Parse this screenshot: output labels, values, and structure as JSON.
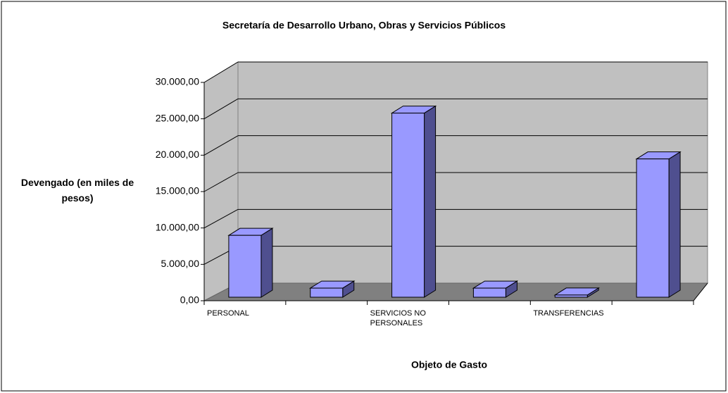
{
  "chart_data": {
    "type": "bar3d",
    "title": "Secretaría de Desarrollo Urbano, Obras y Servicios Públicos",
    "y_label": "Devengado (en miles de pesos)",
    "x_label": "Objeto de Gasto",
    "categories": [
      "PERSONAL",
      null,
      "SERVICIOS NO PERSONALES",
      null,
      "TRANSFERENCIAS",
      null
    ],
    "values": [
      8500,
      1250,
      25300,
      1250,
      300,
      19000
    ],
    "color": "#9999ff",
    "ylim": [
      0,
      30000
    ],
    "yticks": [
      {
        "value": 0,
        "label": "0,00"
      },
      {
        "value": 5000,
        "label": "5.000,00"
      },
      {
        "value": 10000,
        "label": "10.000,00"
      },
      {
        "value": 15000,
        "label": "15.000,00"
      },
      {
        "value": 20000,
        "label": "20.000,00"
      },
      {
        "value": 25000,
        "label": "25.000,00"
      },
      {
        "value": 30000,
        "label": "30.000,00"
      }
    ],
    "grid": true
  }
}
